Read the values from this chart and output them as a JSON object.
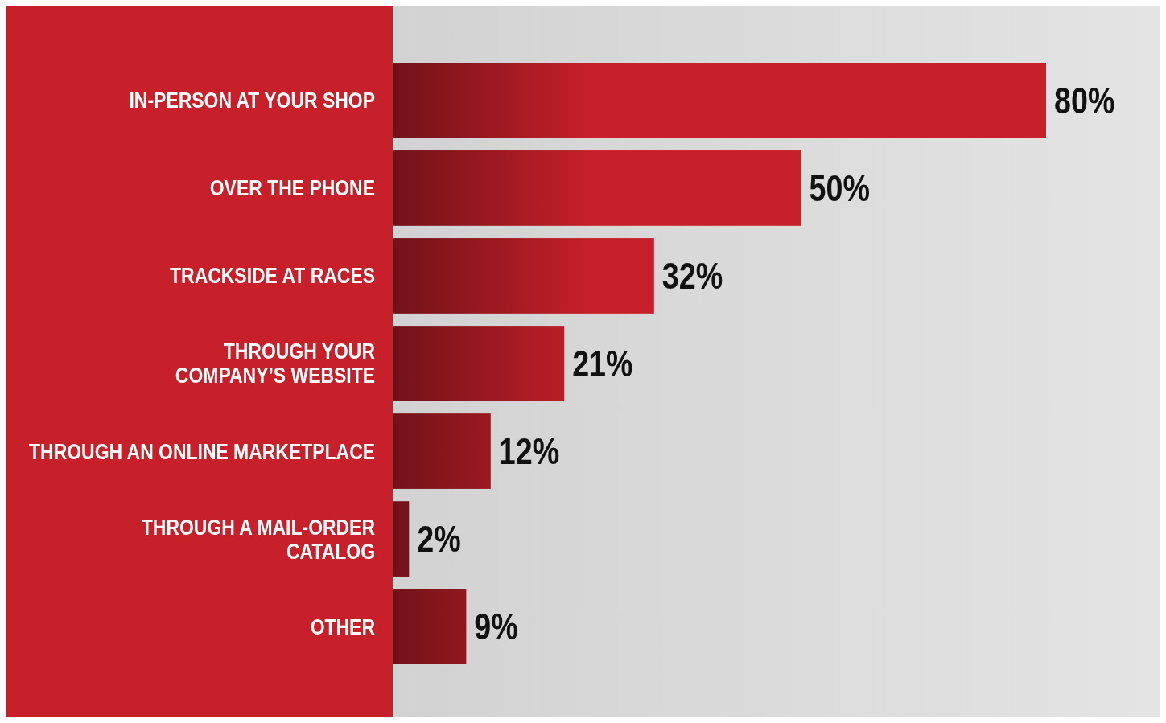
{
  "chart_data": {
    "type": "bar",
    "orientation": "horizontal",
    "categories": [
      "IN-PERSON AT YOUR SHOP",
      "OVER THE PHONE",
      "TRACKSIDE AT RACES",
      "THROUGH YOUR\nCOMPANY’S WEBSITE",
      "THROUGH AN ONLINE MARKETPLACE",
      "THROUGH A MAIL-ORDER\nCATALOG",
      "OTHER"
    ],
    "values": [
      80,
      50,
      32,
      21,
      12,
      2,
      9
    ],
    "value_labels": [
      "80%",
      "50%",
      "32%",
      "21%",
      "12%",
      "2%",
      "9%"
    ],
    "color": "#c8202a"
  }
}
